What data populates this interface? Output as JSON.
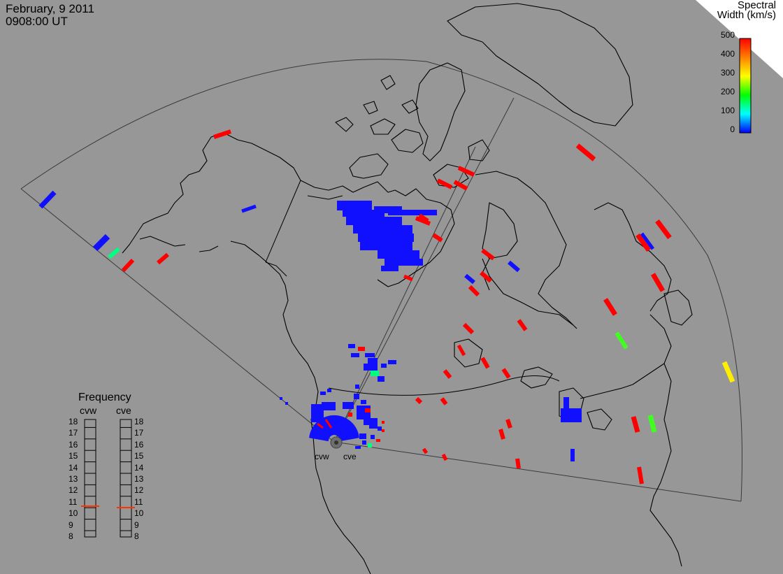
{
  "header": {
    "date": "February, 9 2011",
    "time": "0908:00 UT"
  },
  "colorbar": {
    "title_line1": "Spectral",
    "title_line2": "Width (km/s)",
    "ticks": [
      "500",
      "400",
      "300",
      "200",
      "100",
      "0"
    ],
    "value_range": [
      0,
      500
    ],
    "colors": [
      "#ff0000",
      "#ff8000",
      "#ffff00",
      "#00ff00",
      "#00ffff",
      "#0000ff"
    ]
  },
  "frequency_panel": {
    "title": "Frequency",
    "radars": [
      {
        "code": "cvw",
        "frequency_mhz": 10.8
      },
      {
        "code": "cve",
        "frequency_mhz": 10.8
      }
    ],
    "scale": [
      "18",
      "17",
      "16",
      "15",
      "14",
      "13",
      "12",
      "11",
      "10",
      "9",
      "8"
    ],
    "marker_color": "#ff3300"
  },
  "radar_sites": [
    {
      "code": "cvw"
    },
    {
      "code": "cve"
    }
  ],
  "scatter_colors": {
    "low_width": "#1010ff",
    "high_width": "#ff0000",
    "mid_width": "#00ff80",
    "yellow_width": "#ffee00",
    "green_width": "#40ff20"
  }
}
